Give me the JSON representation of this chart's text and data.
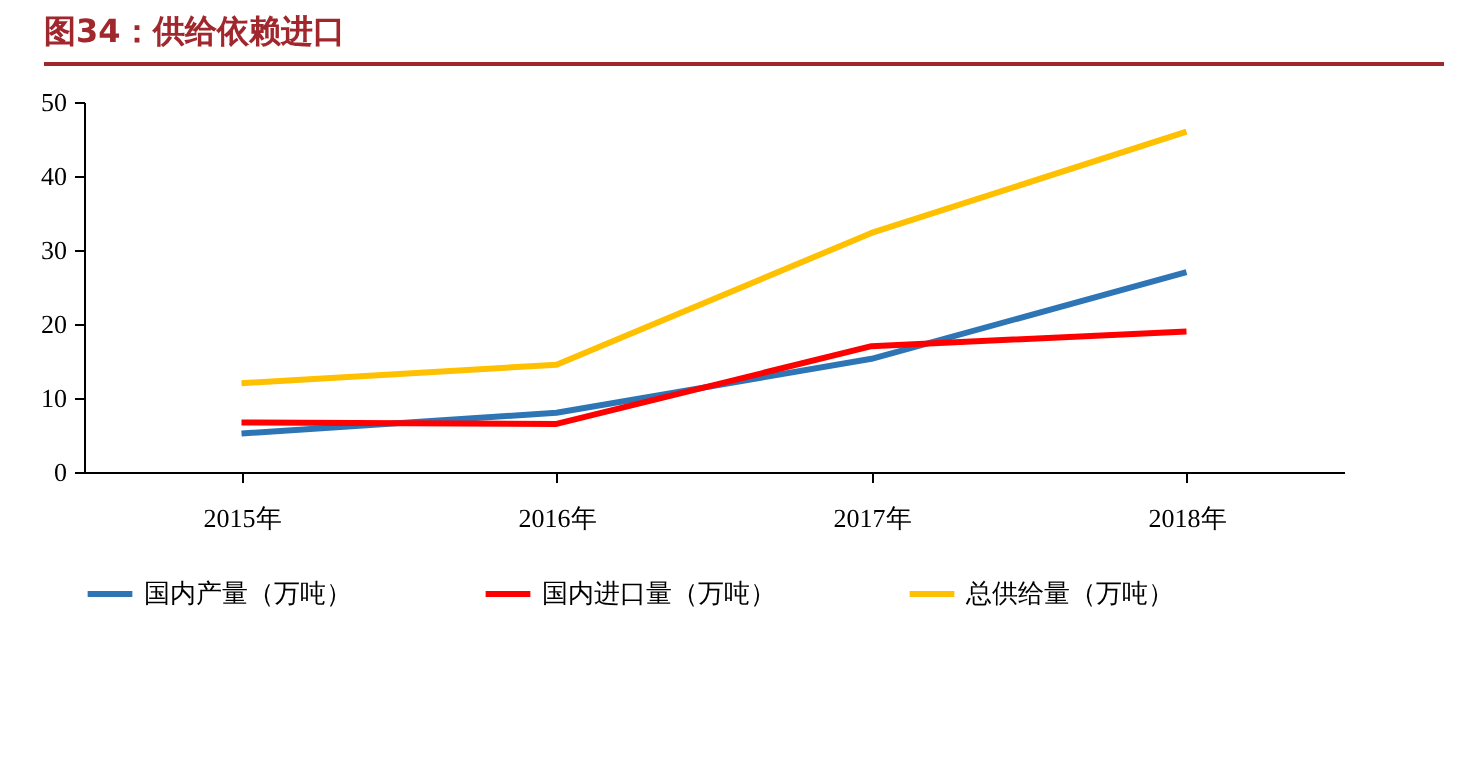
{
  "chart_data": {
    "type": "line",
    "title": "图34：供给依赖进口",
    "categories": [
      "2015年",
      "2016年",
      "2017年",
      "2018年"
    ],
    "series": [
      {
        "name": "国内产量（万吨）",
        "color": "#2e75b6",
        "values": [
          5.2,
          8,
          15.3,
          27
        ]
      },
      {
        "name": "国内进口量（万吨）",
        "color": "#ff0000",
        "values": [
          6.7,
          6.5,
          17,
          19
        ]
      },
      {
        "name": "总供给量（万吨）",
        "color": "#ffc000",
        "values": [
          12,
          14.5,
          32.3,
          46
        ]
      }
    ],
    "ylim": [
      0,
      50
    ],
    "yticks": [
      0,
      10,
      20,
      30,
      40,
      50
    ],
    "grid": false,
    "legend": "bottom",
    "marker": "none",
    "line_style": "solid"
  }
}
